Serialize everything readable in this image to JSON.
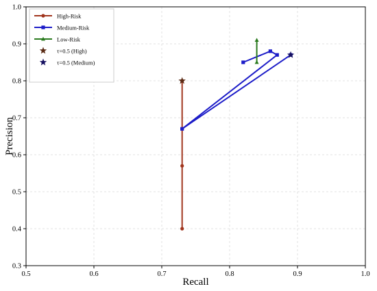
{
  "chart_data": {
    "type": "line",
    "title": "",
    "xlabel": "Recall",
    "ylabel": "Precision",
    "xlim": [
      0.5,
      1.0
    ],
    "ylim": [
      0.3,
      1.0
    ],
    "x_ticks": [
      "0.5",
      "0.6",
      "0.7",
      "0.8",
      "0.9",
      "1.0"
    ],
    "y_ticks": [
      "0.3",
      "0.4",
      "0.5",
      "0.6",
      "0.7",
      "0.8",
      "0.9",
      "1.0"
    ],
    "grid": true,
    "legend_position": "top-left",
    "series": [
      {
        "name": "High-Risk",
        "color": "#a0341c",
        "marker": "circle",
        "points": [
          [
            0.73,
            0.8
          ],
          [
            0.73,
            0.67
          ],
          [
            0.73,
            0.57
          ],
          [
            0.73,
            0.4
          ]
        ]
      },
      {
        "name": "Medium-Risk",
        "color": "#1c1cc8",
        "marker": "square",
        "points": [
          [
            0.82,
            0.85
          ],
          [
            0.86,
            0.88
          ],
          [
            0.87,
            0.87
          ],
          [
            0.73,
            0.67
          ],
          [
            0.89,
            0.87
          ]
        ]
      },
      {
        "name": "Low-Risk",
        "color": "#2a7a1e",
        "marker": "triangle",
        "points": [
          [
            0.84,
            0.85
          ],
          [
            0.84,
            0.91
          ]
        ]
      }
    ],
    "highlights": [
      {
        "name": "τ=0.5 (High)",
        "x": 0.73,
        "y": 0.8,
        "color": "#5a2a14",
        "marker": "star"
      },
      {
        "name": "τ=0.5 (Medium)",
        "x": 0.89,
        "y": 0.87,
        "color": "#151060",
        "marker": "star"
      }
    ]
  }
}
